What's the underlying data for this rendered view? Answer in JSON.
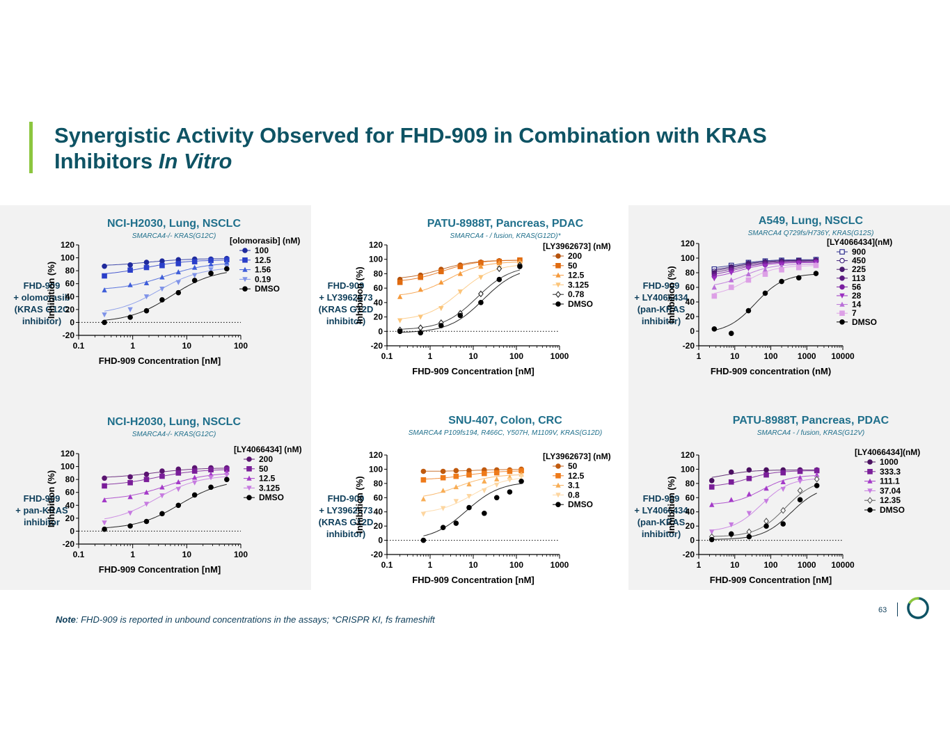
{
  "slide": {
    "title_line1": "Synergistic Activity Observed for FHD-909 in Combination with KRAS",
    "title_line2_plain": "Inhibitors ",
    "title_line2_italic": "In Vitro",
    "note_label": "Note",
    "note_text": ": FHD-909 is reported in unbound concentrations in the assays; *CRISPR KI, fs frameshift",
    "page_number": "63",
    "colors": {
      "title": "#0e5364",
      "accent": "#8cc63f",
      "panel": "#f2f2f2",
      "chart_title": "#1f6f8b"
    }
  },
  "side_labels": [
    [
      "FHD-909",
      "+ olomorasib",
      "(KRAS G12C",
      "inhibitor)"
    ],
    [
      "FHD-909",
      "+ LY3962673",
      "(KRAS G12D",
      "inhibitor)"
    ],
    [
      "FHD-909",
      "+ LY4066434",
      "(pan-KRAS",
      "inhibitor)"
    ],
    [
      "FHD-909",
      "+ pan-KRAS",
      "inhibitor"
    ],
    [
      "FHD-909",
      "+ LY3962673",
      "(KRAS G12D",
      "inhibitor)"
    ],
    [
      "FHD-909",
      "+ LY4066434",
      "(pan-KRAS",
      "inhibitor)"
    ]
  ],
  "chart_data": [
    {
      "type": "scatter",
      "title": "NCI-H2030, Lung, NSCLC",
      "subtitle": "SMARCA4-/- KRAS(G12C)",
      "xlabel": "FHD-909 Concentration [nM]",
      "ylabel": "Inhibition (%)",
      "xscale": "log",
      "xlim": [
        0.1,
        100
      ],
      "ylim": [
        -20,
        120
      ],
      "xticks": [
        0.1,
        1,
        10,
        100
      ],
      "xtick_labels": [
        "0.1",
        "1",
        "10",
        "100"
      ],
      "yticks": [
        -20,
        0,
        20,
        40,
        60,
        80,
        100,
        120
      ],
      "legend_title": "[olomorasib] (nM)",
      "baseline_dotted": true,
      "x": [
        0.3,
        0.9,
        1.8,
        3.5,
        7,
        14,
        28,
        55
      ],
      "series": [
        {
          "name": "100",
          "color": "#1f2a9c",
          "marker": "circle",
          "values": [
            87,
            89,
            93,
            95,
            97,
            98,
            98,
            99
          ]
        },
        {
          "name": "12.5",
          "color": "#2a3fc9",
          "marker": "square",
          "values": [
            72,
            81,
            85,
            88,
            91,
            94,
            96,
            97
          ]
        },
        {
          "name": "1.56",
          "color": "#3f5ed9",
          "marker": "triangle",
          "values": [
            50,
            58,
            61,
            70,
            78,
            85,
            90,
            93
          ]
        },
        {
          "name": "0.19",
          "color": "#7f93e8",
          "marker": "tri-down",
          "values": [
            12,
            20,
            40,
            52,
            62,
            73,
            82,
            86
          ]
        },
        {
          "name": "DMSO",
          "color": "#000000",
          "marker": "circle",
          "values": [
            0,
            8,
            18,
            35,
            46,
            65,
            76,
            83
          ]
        }
      ]
    },
    {
      "type": "scatter",
      "title": "PATU-8988T, Pancreas, PDAC",
      "subtitle": "SMARCA4 - / fusion, KRAS(G12D)*",
      "xlabel": "FHD-909 Concentration [nM]",
      "ylabel": "Inhibition (%)",
      "xscale": "log",
      "xlim": [
        0.1,
        1000
      ],
      "ylim": [
        -20,
        120
      ],
      "xticks": [
        0.1,
        1,
        10,
        100,
        1000
      ],
      "xtick_labels": [
        "0.1",
        "1",
        "10",
        "100",
        "1000"
      ],
      "yticks": [
        -20,
        0,
        20,
        40,
        60,
        80,
        100,
        120
      ],
      "legend_title": "[LY3962673] (nM)",
      "baseline_dotted": true,
      "x": [
        0.2,
        0.6,
        1.8,
        5,
        15,
        40,
        120
      ],
      "series": [
        {
          "name": "200",
          "color": "#b5520b",
          "marker": "circle",
          "values": [
            72,
            78,
            86,
            92,
            96,
            98,
            99
          ]
        },
        {
          "name": "50",
          "color": "#e06b10",
          "marker": "square",
          "values": [
            68,
            75,
            83,
            90,
            95,
            97,
            99
          ]
        },
        {
          "name": "12.5",
          "color": "#f59a3c",
          "marker": "triangle",
          "values": [
            48,
            58,
            68,
            80,
            90,
            95,
            97
          ]
        },
        {
          "name": "3.125",
          "color": "#fcc57a",
          "marker": "tri-down",
          "values": [
            15,
            20,
            32,
            55,
            75,
            88,
            94
          ]
        },
        {
          "name": "0.78",
          "color": "#222222",
          "marker": "diamond-open",
          "values": [
            2,
            5,
            12,
            25,
            52,
            87,
            92
          ]
        },
        {
          "name": "DMSO",
          "color": "#000000",
          "marker": "circle",
          "values": [
            0,
            -2,
            8,
            22,
            40,
            72,
            90
          ]
        }
      ]
    },
    {
      "type": "scatter",
      "title": "A549, Lung, NSCLC",
      "subtitle": "SMARCA4 Q729fs/H736Y, KRAS(G12S)",
      "xlabel": "FHD-909 concentration (nM)",
      "ylabel": "Inhibition (%)",
      "xscale": "log",
      "xlim": [
        1,
        10000
      ],
      "ylim": [
        -20,
        120
      ],
      "xticks": [
        1,
        10,
        100,
        1000,
        10000
      ],
      "xtick_labels": [
        "1",
        "10",
        "100",
        "1000",
        "10000"
      ],
      "yticks": [
        -20,
        0,
        20,
        40,
        60,
        80,
        100,
        120
      ],
      "legend_title": "[LY4066434](nM)",
      "baseline_dotted": false,
      "x": [
        2.7,
        8,
        24,
        70,
        200,
        600,
        1800
      ],
      "series": [
        {
          "name": "900",
          "color": "#2a2a8c",
          "marker": "square-open",
          "values": [
            85,
            90,
            94,
            96,
            97,
            97,
            98
          ]
        },
        {
          "name": "450",
          "color": "#3d1f7a",
          "marker": "circle-open",
          "values": [
            82,
            88,
            93,
            95,
            96,
            97,
            97
          ]
        },
        {
          "name": "225",
          "color": "#4a1a6e",
          "marker": "circle",
          "values": [
            80,
            87,
            92,
            94,
            95,
            96,
            97
          ]
        },
        {
          "name": "113",
          "color": "#5b1a80",
          "marker": "circle",
          "values": [
            78,
            85,
            90,
            93,
            94,
            95,
            96
          ]
        },
        {
          "name": "56",
          "color": "#7a1fa0",
          "marker": "circle",
          "values": [
            75,
            83,
            88,
            91,
            93,
            94,
            95
          ]
        },
        {
          "name": "28",
          "color": "#9a2fc0",
          "marker": "tri-down",
          "values": [
            72,
            80,
            86,
            89,
            91,
            93,
            94
          ]
        },
        {
          "name": "14",
          "color": "#b96fd8",
          "marker": "triangle",
          "values": [
            60,
            70,
            78,
            84,
            88,
            90,
            92
          ]
        },
        {
          "name": "7",
          "color": "#dda0e6",
          "marker": "square",
          "values": [
            48,
            60,
            70,
            78,
            84,
            87,
            90
          ]
        },
        {
          "name": "DMSO",
          "color": "#000000",
          "marker": "circle",
          "values": [
            3,
            -3,
            28,
            52,
            68,
            73,
            79
          ]
        }
      ]
    },
    {
      "type": "scatter",
      "title": "NCI-H2030, Lung, NSCLC",
      "subtitle": "SMARCA4-/- KRAS(G12C)",
      "xlabel": "FHD-909 Concentration [nM]",
      "ylabel": "Inhibition (%)",
      "xscale": "log",
      "xlim": [
        0.1,
        100
      ],
      "ylim": [
        -20,
        120
      ],
      "xticks": [
        0.1,
        1,
        10,
        100
      ],
      "xtick_labels": [
        "0.1",
        "1",
        "10",
        "100"
      ],
      "yticks": [
        -20,
        0,
        20,
        40,
        60,
        80,
        100,
        120
      ],
      "legend_title": "[LY4066434] (nM)",
      "baseline_dotted": true,
      "x": [
        0.3,
        0.9,
        1.8,
        3.5,
        7,
        14,
        28,
        55
      ],
      "series": [
        {
          "name": "200",
          "color": "#5a1470",
          "marker": "circle",
          "values": [
            82,
            84,
            88,
            93,
            96,
            98,
            98,
            98
          ]
        },
        {
          "name": "50",
          "color": "#7a1e99",
          "marker": "square",
          "values": [
            70,
            75,
            80,
            85,
            90,
            93,
            95,
            96
          ]
        },
        {
          "name": "12.5",
          "color": "#a43ac8",
          "marker": "triangle",
          "values": [
            48,
            53,
            60,
            68,
            76,
            83,
            88,
            91
          ]
        },
        {
          "name": "3.125",
          "color": "#c67ae0",
          "marker": "tri-down",
          "values": [
            13,
            28,
            42,
            55,
            65,
            75,
            83,
            87
          ]
        },
        {
          "name": "DMSO",
          "color": "#000000",
          "marker": "circle",
          "values": [
            3,
            8,
            15,
            27,
            40,
            56,
            68,
            80
          ]
        }
      ]
    },
    {
      "type": "scatter",
      "title": "SNU-407, Colon, CRC",
      "subtitle": "SMARCA4 P109fs194, R466C, Y507H, M1109V, KRAS(G12D)",
      "xlabel": "FHD-909 Concentration [nM]",
      "ylabel": "Inhibition (%)",
      "xscale": "log",
      "xlim": [
        0.1,
        1000
      ],
      "ylim": [
        -20,
        120
      ],
      "xticks": [
        0.1,
        1,
        10,
        100,
        1000
      ],
      "xtick_labels": [
        "0.1",
        "1",
        "10",
        "100",
        "1000"
      ],
      "yticks": [
        -20,
        0,
        20,
        40,
        60,
        80,
        100,
        120
      ],
      "legend_title": "[LY3962673] (nM)",
      "baseline_dotted": true,
      "x": [
        0.7,
        2,
        4,
        8,
        18,
        35,
        70,
        130
      ],
      "series": [
        {
          "name": "50",
          "color": "#c05a0e",
          "marker": "circle",
          "values": [
            97,
            97,
            98,
            98,
            99,
            99,
            99,
            100
          ]
        },
        {
          "name": "12.5",
          "color": "#ee7a1a",
          "marker": "square",
          "values": [
            85,
            88,
            90,
            92,
            94,
            95,
            97,
            98
          ]
        },
        {
          "name": "3.1",
          "color": "#f8ad55",
          "marker": "triangle",
          "values": [
            58,
            70,
            75,
            79,
            83,
            86,
            89,
            93
          ]
        },
        {
          "name": "0.8",
          "color": "#fdd6a0",
          "marker": "tri-down",
          "values": [
            37,
            45,
            55,
            62,
            70,
            78,
            85,
            90
          ]
        },
        {
          "name": "DMSO",
          "color": "#000000",
          "marker": "circle",
          "values": [
            0,
            18,
            24,
            46,
            38,
            60,
            68,
            83
          ]
        }
      ]
    },
    {
      "type": "scatter",
      "title": "PATU-8988T, Pancreas, PDAC",
      "subtitle": "SMARCA4 - / fusion, KRAS(G12V)",
      "xlabel": "FHD-909 Concentration [nM]",
      "ylabel": "Inhibition (%)",
      "xscale": "log",
      "xlim": [
        1,
        10000
      ],
      "ylim": [
        -20,
        120
      ],
      "xticks": [
        1,
        10,
        100,
        1000,
        10000
      ],
      "xtick_labels": [
        "1",
        "10",
        "100",
        "1000",
        "10000"
      ],
      "yticks": [
        -20,
        0,
        20,
        40,
        60,
        80,
        100,
        120
      ],
      "legend_title": "[LY4066434](nM)",
      "baseline_dotted": true,
      "x": [
        2.3,
        8,
        25,
        75,
        220,
        650,
        1900
      ],
      "series": [
        {
          "name": "1000",
          "color": "#4a1060",
          "marker": "circle",
          "values": [
            84,
            96,
            99,
            99,
            99,
            99,
            99
          ]
        },
        {
          "name": "333.3",
          "color": "#7a1e99",
          "marker": "square",
          "values": [
            75,
            82,
            87,
            92,
            95,
            97,
            98
          ]
        },
        {
          "name": "111.1",
          "color": "#a43ac8",
          "marker": "triangle",
          "values": [
            50,
            57,
            65,
            73,
            82,
            88,
            92
          ]
        },
        {
          "name": "37.04",
          "color": "#c67ae0",
          "marker": "tri-down",
          "values": [
            12,
            22,
            38,
            55,
            72,
            83,
            88
          ]
        },
        {
          "name": "12.35",
          "color": "#555555",
          "marker": "diamond-open",
          "values": [
            5,
            8,
            12,
            27,
            42,
            70,
            86
          ]
        },
        {
          "name": "DMSO",
          "color": "#000000",
          "marker": "circle",
          "values": [
            1,
            9,
            5,
            20,
            23,
            57,
            77
          ]
        }
      ]
    }
  ]
}
